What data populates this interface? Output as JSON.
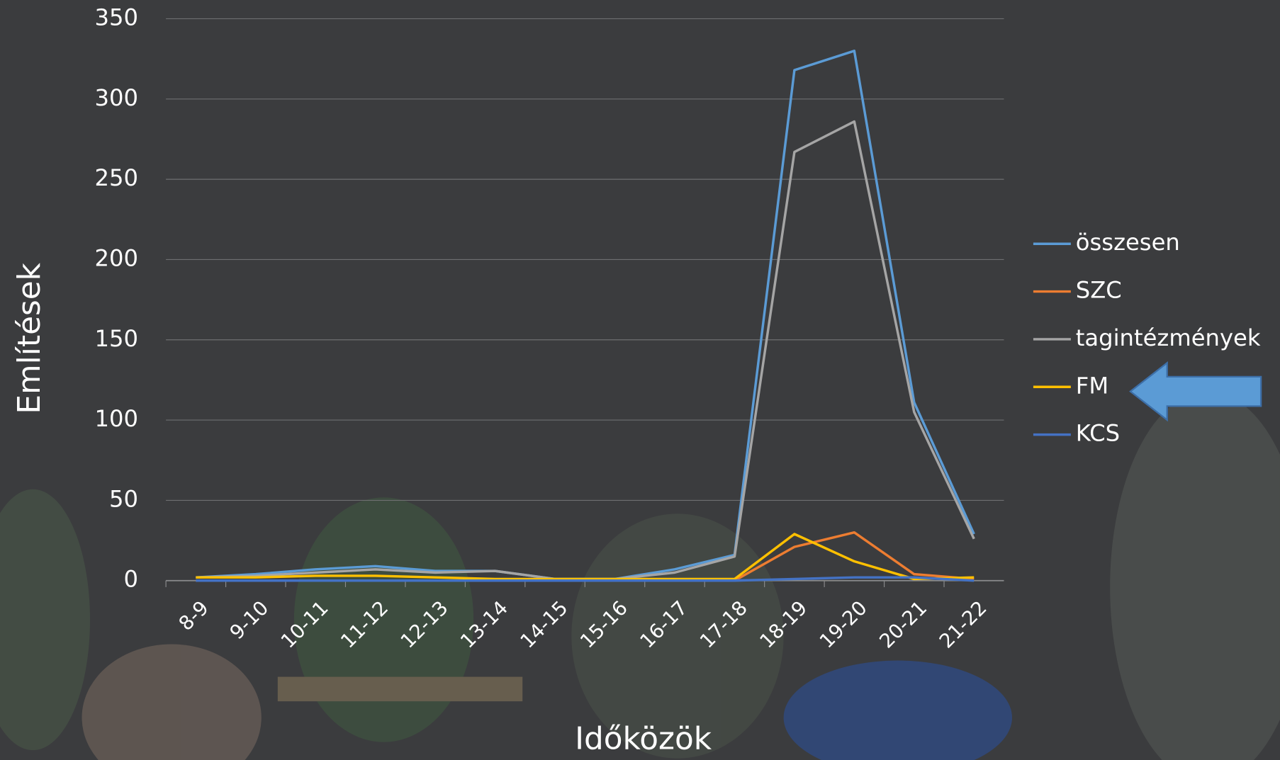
{
  "chart_data": {
    "type": "line",
    "categories": [
      "8-9",
      "9-10",
      "10-11",
      "11-12",
      "12-13",
      "13-14",
      "14-15",
      "15-16",
      "16-17",
      "17-18",
      "18-19",
      "19-20",
      "20-21",
      "21-22"
    ],
    "series": [
      {
        "name": "összesen",
        "color": "#5b9bd5",
        "values": [
          2,
          4,
          7,
          9,
          6,
          6,
          1,
          1,
          7,
          16,
          318,
          330,
          111,
          29
        ]
      },
      {
        "name": "SZC",
        "color": "#ed7d31",
        "values": [
          0,
          0,
          0,
          0,
          0,
          0,
          0,
          0,
          0,
          0,
          21,
          30,
          4,
          1
        ]
      },
      {
        "name": "tagintézmények",
        "color": "#a5a5a5",
        "values": [
          2,
          3,
          5,
          7,
          5,
          6,
          1,
          1,
          5,
          15,
          267,
          286,
          105,
          26
        ]
      },
      {
        "name": "FM",
        "color": "#ffc000",
        "values": [
          2,
          2,
          3,
          3,
          2,
          1,
          1,
          1,
          1,
          1,
          29,
          12,
          1,
          2
        ]
      },
      {
        "name": "KCS",
        "color": "#4472c4",
        "values": [
          0,
          0,
          0,
          0,
          0,
          0,
          0,
          0,
          0,
          0,
          1,
          2,
          2,
          0
        ]
      }
    ],
    "ylabel": "Említések",
    "xlabel": "Időközök",
    "ylim": [
      0,
      350
    ],
    "yticks": [
      0,
      50,
      100,
      150,
      200,
      250,
      300,
      350
    ],
    "grid": true,
    "legend": "right"
  }
}
